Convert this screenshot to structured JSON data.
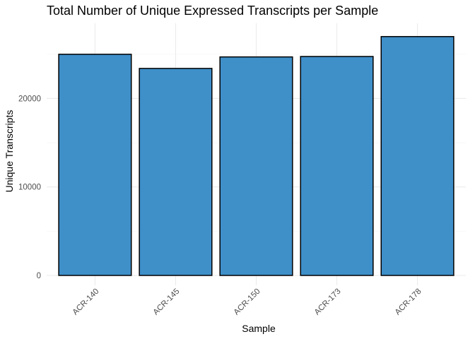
{
  "chart_data": {
    "type": "bar",
    "title": "Total Number of Unique Expressed Transcripts per Sample",
    "xlabel": "Sample",
    "ylabel": "Unique Transcripts",
    "categories": [
      "ACR-140",
      "ACR-145",
      "ACR-150",
      "ACR-173",
      "ACR-178"
    ],
    "values": [
      25000,
      23400,
      24700,
      24750,
      27000
    ],
    "ylim": [
      0,
      28500
    ],
    "y_ticks": [
      0,
      10000,
      20000
    ],
    "y_tick_labels": [
      "0",
      "10000",
      "20000"
    ],
    "bar_color": "#3f8fc9",
    "bar_border_color": "#000000",
    "grid": true,
    "x_tick_rotation_deg": 45
  }
}
